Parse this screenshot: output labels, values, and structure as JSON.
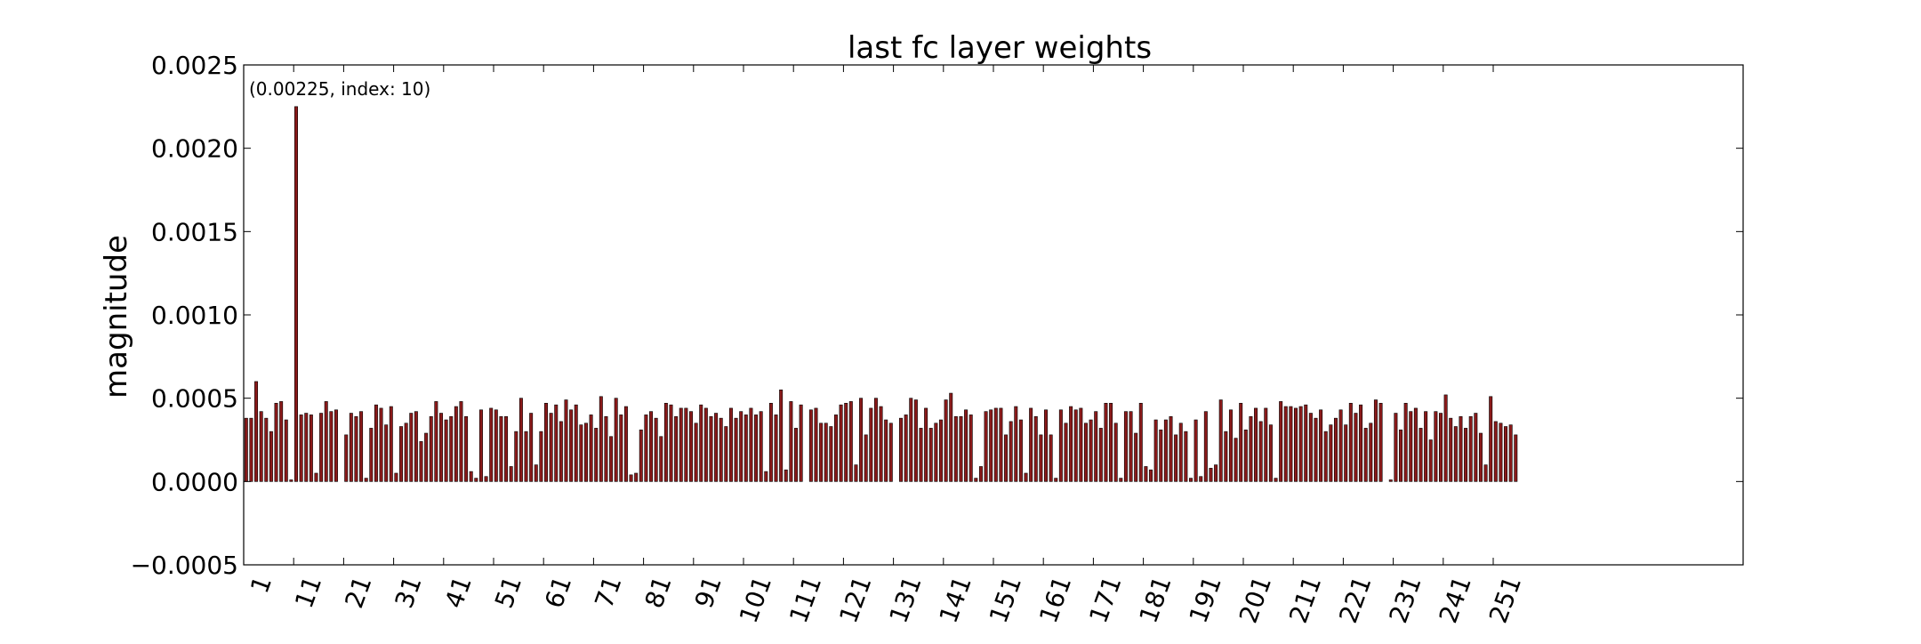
{
  "chart_data": {
    "type": "bar",
    "title": "last fc layer weights",
    "xlabel": "",
    "ylabel": "magnitude",
    "annotation": "(0.00225, index: 10)",
    "annotation_point": {
      "index": 10,
      "value": 0.00225
    },
    "ylim": [
      -0.0005,
      0.0025
    ],
    "xlim": [
      0,
      300
    ],
    "y_ticks": [
      -0.0005,
      0.0,
      0.0005,
      0.001,
      0.0015,
      0.002,
      0.0025
    ],
    "y_tick_labels": [
      "−0.0005",
      "0.0000",
      "0.0005",
      "0.0010",
      "0.0015",
      "0.0020",
      "0.0025"
    ],
    "x_ticks": [
      0,
      10,
      20,
      30,
      40,
      50,
      60,
      70,
      80,
      90,
      100,
      110,
      120,
      130,
      140,
      150,
      160,
      170,
      180,
      190,
      200,
      210,
      220,
      230,
      240,
      250
    ],
    "x_tick_labels": [
      "1",
      "11",
      "21",
      "31",
      "41",
      "51",
      "61",
      "71",
      "81",
      "91",
      "101",
      "111",
      "121",
      "131",
      "141",
      "151",
      "161",
      "171",
      "181",
      "191",
      "201",
      "211",
      "221",
      "231",
      "241",
      "251"
    ],
    "bar_color": "#8b1a1a",
    "grid": false,
    "values": [
      0.00038,
      0.00038,
      0.0006,
      0.00042,
      0.00038,
      0.0003,
      0.00047,
      0.00048,
      0.00037,
      1e-05,
      0.00225,
      0.0004,
      0.00041,
      0.0004,
      5e-05,
      0.00041,
      0.00048,
      0.00042,
      0.00043,
      0.0,
      0.00028,
      0.00041,
      0.00039,
      0.00042,
      2e-05,
      0.00032,
      0.00046,
      0.00044,
      0.00034,
      0.00045,
      5e-05,
      0.00033,
      0.00035,
      0.00041,
      0.00042,
      0.00024,
      0.00029,
      0.00039,
      0.00048,
      0.00041,
      0.00037,
      0.00039,
      0.00045,
      0.00048,
      0.00039,
      6e-05,
      2e-05,
      0.00043,
      3e-05,
      0.00044,
      0.00043,
      0.00039,
      0.00039,
      9e-05,
      0.0003,
      0.0005,
      0.0003,
      0.00041,
      0.0001,
      0.0003,
      0.00047,
      0.00041,
      0.00046,
      0.00036,
      0.00049,
      0.00043,
      0.00046,
      0.00034,
      0.00035,
      0.0004,
      0.00032,
      0.00051,
      0.00039,
      0.00027,
      0.0005,
      0.0004,
      0.00045,
      4e-05,
      5e-05,
      0.00031,
      0.0004,
      0.00042,
      0.00038,
      0.00027,
      0.00047,
      0.00046,
      0.00039,
      0.00044,
      0.00044,
      0.00042,
      0.00035,
      0.00046,
      0.00044,
      0.00039,
      0.00041,
      0.00038,
      0.00033,
      0.00044,
      0.00038,
      0.00042,
      0.0004,
      0.00044,
      0.0004,
      0.00042,
      6e-05,
      0.00047,
      0.0004,
      0.00055,
      7e-05,
      0.00048,
      0.00032,
      0.00046,
      0.0,
      0.00043,
      0.00044,
      0.00035,
      0.00035,
      0.00033,
      0.0004,
      0.00046,
      0.00047,
      0.00048,
      0.0001,
      0.0005,
      0.00028,
      0.00044,
      0.0005,
      0.00045,
      0.00037,
      0.00035,
      0.0,
      0.00038,
      0.0004,
      0.0005,
      0.00049,
      0.00032,
      0.00044,
      0.00032,
      0.00035,
      0.00037,
      0.00049,
      0.00053,
      0.00039,
      0.00039,
      0.00043,
      0.0004,
      2e-05,
      9e-05,
      0.00042,
      0.00043,
      0.00044,
      0.00044,
      0.00028,
      0.00036,
      0.00045,
      0.00037,
      5e-05,
      0.00044,
      0.00039,
      0.00028,
      0.00043,
      0.00028,
      2e-05,
      0.00043,
      0.00035,
      0.00045,
      0.00043,
      0.00044,
      0.00035,
      0.00037,
      0.00042,
      0.00032,
      0.00047,
      0.00047,
      0.00035,
      2e-05,
      0.00042,
      0.00042,
      0.00029,
      0.00047,
      9e-05,
      7e-05,
      0.00037,
      0.00031,
      0.00037,
      0.00039,
      0.00028,
      0.00035,
      0.0003,
      2e-05,
      0.00037,
      3e-05,
      0.00042,
      8e-05,
      0.0001,
      0.00049,
      0.0003,
      0.00043,
      0.00026,
      0.00047,
      0.00031,
      0.00039,
      0.00044,
      0.00036,
      0.00044,
      0.00034,
      2e-05,
      0.00048,
      0.00045,
      0.00045,
      0.00044,
      0.00045,
      0.00046,
      0.00041,
      0.00038,
      0.00043,
      0.0003,
      0.00034,
      0.00038,
      0.00043,
      0.00034,
      0.00047,
      0.00041,
      0.00046,
      0.00032,
      0.00035,
      0.00049,
      0.00047,
      0.0,
      1e-05,
      0.00041,
      0.00031,
      0.00047,
      0.00042,
      0.00044,
      0.00032,
      0.00042,
      0.00025,
      0.00042,
      0.00041,
      0.00052,
      0.00038,
      0.00033,
      0.00039,
      0.00032,
      0.00039,
      0.00041,
      0.00029,
      0.0001,
      0.00051,
      0.00036,
      0.00035,
      0.00033,
      0.00034,
      0.00028
    ]
  }
}
